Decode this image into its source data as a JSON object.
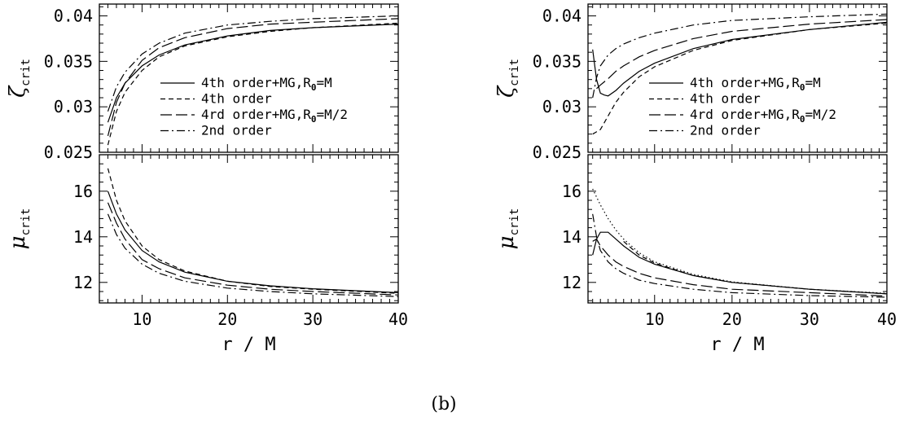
{
  "figure": {
    "caption": "(b)"
  },
  "chart_data": [
    {
      "type": "line",
      "panel": "left-top",
      "ylabel": {
        "symbol": "ζ",
        "subscript": "crit"
      },
      "xlim": [
        5,
        40
      ],
      "ylim": [
        0.025,
        0.0413
      ],
      "ytick_labels": [
        "0.025",
        "0.03",
        "0.035",
        "0.04"
      ],
      "yticks": [
        0.025,
        0.03,
        0.035,
        0.04
      ],
      "legend": {
        "position": "center-right"
      },
      "series": [
        {
          "name": "4th order+MG,R0=M",
          "label_parts": [
            "4th order+MG,R",
            "0",
            "=M"
          ],
          "style": "solid",
          "x": [
            6,
            7,
            8,
            10,
            12,
            15,
            20,
            25,
            30,
            40
          ],
          "y": [
            0.0283,
            0.031,
            0.0326,
            0.0345,
            0.0357,
            0.0368,
            0.0378,
            0.0384,
            0.0387,
            0.0391
          ]
        },
        {
          "name": "4th order",
          "style": "dash",
          "x": [
            6,
            7,
            8,
            10,
            12,
            15,
            20,
            25,
            30,
            40
          ],
          "y": [
            0.0258,
            0.0295,
            0.0316,
            0.034,
            0.0355,
            0.0367,
            0.0377,
            0.0383,
            0.0387,
            0.0392
          ]
        },
        {
          "name": "4rd order+MG,R0=M/2",
          "label_parts": [
            "4rd order+MG,R",
            "0",
            "=M/2"
          ],
          "style": "longdash",
          "x": [
            6,
            7,
            8,
            10,
            12,
            15,
            20,
            25,
            30,
            40
          ],
          "y": [
            0.0268,
            0.0305,
            0.0326,
            0.0351,
            0.0365,
            0.0376,
            0.0386,
            0.0391,
            0.0393,
            0.0397
          ]
        },
        {
          "name": "2nd order",
          "style": "dashdot",
          "x": [
            6,
            7,
            8,
            10,
            12,
            15,
            20,
            25,
            30,
            40
          ],
          "y": [
            0.0295,
            0.0322,
            0.0338,
            0.0358,
            0.037,
            0.0381,
            0.039,
            0.0394,
            0.0397,
            0.04
          ]
        }
      ]
    },
    {
      "type": "line",
      "panel": "left-bottom",
      "xlabel": "r / M",
      "ylabel": {
        "symbol": "μ",
        "subscript": "crit"
      },
      "xlim": [
        5,
        40
      ],
      "ylim": [
        11.1,
        17.6
      ],
      "xticks": [
        10,
        20,
        30,
        40
      ],
      "xtick_labels": [
        "10",
        "20",
        "30",
        "40"
      ],
      "yticks": [
        12,
        14,
        16
      ],
      "ytick_labels": [
        "12",
        "14",
        "16"
      ],
      "series": [
        {
          "name": "4th order+MG,R0=M",
          "style": "solid",
          "x": [
            6,
            7,
            8,
            10,
            12,
            15,
            20,
            25,
            30,
            40
          ],
          "y": [
            16.0,
            15.0,
            14.3,
            13.4,
            12.9,
            12.45,
            12.05,
            11.85,
            11.72,
            11.55
          ]
        },
        {
          "name": "4th order",
          "style": "dash",
          "x": [
            6,
            7,
            8,
            10,
            12,
            15,
            20,
            25,
            30,
            40
          ],
          "y": [
            17.0,
            15.6,
            14.7,
            13.6,
            13.0,
            12.5,
            12.05,
            11.82,
            11.7,
            11.52
          ]
        },
        {
          "name": "4rd order+MG,R0=M/2",
          "style": "longdash",
          "x": [
            6,
            7,
            8,
            10,
            12,
            15,
            20,
            25,
            30,
            40
          ],
          "y": [
            15.5,
            14.6,
            13.9,
            13.0,
            12.6,
            12.2,
            11.88,
            11.7,
            11.6,
            11.45
          ]
        },
        {
          "name": "2nd order",
          "style": "dashdot",
          "x": [
            6,
            7,
            8,
            10,
            12,
            15,
            20,
            25,
            30,
            40
          ],
          "y": [
            15.0,
            14.1,
            13.5,
            12.8,
            12.4,
            12.05,
            11.75,
            11.6,
            11.5,
            11.38
          ]
        }
      ]
    },
    {
      "type": "line",
      "panel": "right-top",
      "ylabel": {
        "symbol": "ζ",
        "subscript": "crit"
      },
      "xlim": [
        1.4,
        40
      ],
      "ylim": [
        0.025,
        0.0413
      ],
      "ytick_labels": [
        "0.025",
        "0.03",
        "0.035",
        "0.04"
      ],
      "yticks": [
        0.025,
        0.03,
        0.035,
        0.04
      ],
      "legend": {
        "position": "center-right"
      },
      "series": [
        {
          "name": "4th order+MG,R0=M",
          "label_parts": [
            "4th order+MG,R",
            "0",
            "=M"
          ],
          "style": "solid",
          "x": [
            2,
            2.5,
            3,
            3.5,
            4,
            5,
            6,
            8,
            10,
            15,
            20,
            30,
            40
          ],
          "y": [
            0.0363,
            0.033,
            0.0315,
            0.0313,
            0.0312,
            0.0318,
            0.0326,
            0.0339,
            0.0348,
            0.0364,
            0.0374,
            0.0385,
            0.0393
          ]
        },
        {
          "name": "4th order",
          "style": "dash",
          "x": [
            2,
            3,
            4,
            5,
            6,
            8,
            10,
            15,
            20,
            30,
            40
          ],
          "y": [
            0.027,
            0.0275,
            0.029,
            0.0305,
            0.0316,
            0.0333,
            0.0344,
            0.0362,
            0.0373,
            0.0385,
            0.0392
          ]
        },
        {
          "name": "4rd order+MG,R0=M/2",
          "label_parts": [
            "4rd order+MG,R",
            "0",
            "=M/2"
          ],
          "style": "longdash",
          "x": [
            2.5,
            3,
            4,
            5,
            6,
            8,
            10,
            15,
            20,
            30,
            40
          ],
          "y": [
            0.032,
            0.0324,
            0.0331,
            0.0339,
            0.0345,
            0.0355,
            0.0362,
            0.0375,
            0.0383,
            0.0391,
            0.0396
          ]
        },
        {
          "name": "2nd order",
          "style": "dashdot",
          "x": [
            2,
            2.5,
            3,
            4,
            5,
            6,
            8,
            10,
            15,
            20,
            30,
            40
          ],
          "y": [
            0.031,
            0.0332,
            0.0345,
            0.0357,
            0.0364,
            0.0369,
            0.0376,
            0.0381,
            0.039,
            0.0395,
            0.0399,
            0.0402
          ]
        }
      ]
    },
    {
      "type": "line",
      "panel": "right-bottom",
      "xlabel": "r / M",
      "ylabel": {
        "symbol": "μ",
        "subscript": "crit"
      },
      "xlim": [
        1.4,
        40
      ],
      "ylim": [
        11.1,
        17.6
      ],
      "xticks": [
        10,
        20,
        30,
        40
      ],
      "xtick_labels": [
        "10",
        "20",
        "30",
        "40"
      ],
      "yticks": [
        12,
        14,
        16
      ],
      "ytick_labels": [
        "12",
        "14",
        "16"
      ],
      "series": [
        {
          "name": "4th order+MG,R0=M",
          "style": "solid",
          "x": [
            2,
            2.5,
            3,
            4,
            5,
            6,
            8,
            10,
            15,
            20,
            30,
            40
          ],
          "y": [
            13.2,
            13.9,
            14.2,
            14.2,
            13.9,
            13.6,
            13.1,
            12.8,
            12.3,
            12.0,
            11.7,
            11.5
          ]
        },
        {
          "name": "4th order",
          "style": "dash",
          "x": [
            6,
            8,
            10,
            15,
            20,
            30,
            40
          ],
          "y": [
            13.8,
            13.2,
            12.85,
            12.3,
            12.0,
            11.7,
            11.5
          ]
        },
        {
          "name": "4rd order+MG,R0=M/2",
          "style": "longdash",
          "x": [
            2,
            2.5,
            3,
            4,
            5,
            6,
            8,
            10,
            15,
            20,
            30,
            40
          ],
          "y": [
            13.8,
            13.9,
            13.6,
            13.2,
            12.9,
            12.7,
            12.4,
            12.2,
            11.9,
            11.7,
            11.55,
            11.4
          ]
        },
        {
          "name": "2nd order",
          "style": "dashdot",
          "x": [
            2,
            2.5,
            3,
            4,
            5,
            6,
            8,
            10,
            15,
            20,
            30,
            40
          ],
          "y": [
            15.0,
            14.0,
            13.4,
            12.9,
            12.6,
            12.4,
            12.1,
            11.95,
            11.7,
            11.55,
            11.42,
            11.35
          ]
        },
        {
          "name": "",
          "style": "dotted",
          "x": [
            2,
            3,
            4,
            5,
            6,
            8,
            10,
            15,
            20,
            30,
            40
          ],
          "y": [
            16.1,
            15.4,
            14.8,
            14.3,
            13.9,
            13.3,
            12.9,
            12.35,
            12.02,
            11.7,
            11.52
          ]
        }
      ]
    }
  ]
}
